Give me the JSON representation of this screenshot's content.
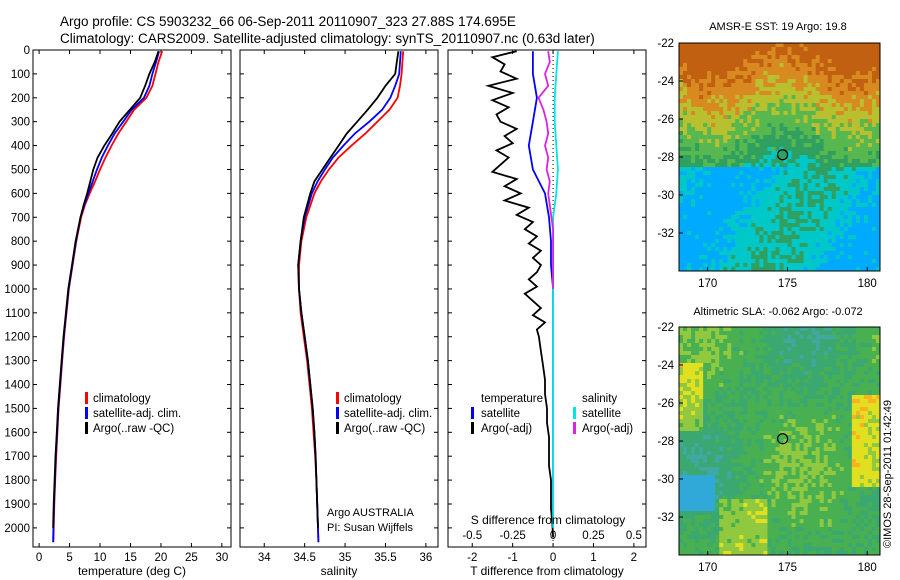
{
  "title": {
    "line1": "Argo profile: CS 5903232_66 06-Sep-2011 20110907_323 27.88S 174.695E",
    "line2": "Climatology: CARS2009. Satellite-adjusted climatology: synTS_20110907.nc (0.63d later)"
  },
  "colors": {
    "climatology": "#ff0000",
    "satellite": "#0000ff",
    "argo": "#000000",
    "s_satellite": "#00e5e5",
    "s_argo": "#e022e0"
  },
  "credits": {
    "argo_line": "Argo AUSTRALIA",
    "pi_line": "PI: Susan Wijffels",
    "imos": "©IMOS 28-Sep-2011 01:42:49"
  },
  "chart_data": [
    {
      "type": "line",
      "name": "temperature-panel",
      "xlabel": "temperature (deg C)",
      "ylabel": "",
      "xlim": [
        -1,
        31.5
      ],
      "ylim": [
        2080,
        0
      ],
      "xticks": [
        "0",
        "5",
        "10",
        "15",
        "20",
        "25",
        "30"
      ],
      "yticks": [
        "0",
        "100",
        "200",
        "300",
        "400",
        "500",
        "600",
        "700",
        "800",
        "900",
        "1000",
        "1100",
        "1200",
        "1300",
        "1400",
        "1500",
        "1600",
        "1700",
        "1800",
        "1900",
        "2000"
      ],
      "legend": [
        "climatology",
        "satellite-adj. clim.",
        "Argo(..raw -QC)"
      ],
      "series": [
        {
          "name": "climatology",
          "depth": [
            5,
            50,
            100,
            150,
            200,
            250,
            300,
            350,
            400,
            450,
            500,
            550,
            600,
            650,
            700,
            800,
            900,
            1000,
            1100,
            1200,
            1300,
            1400,
            1500,
            1600,
            1700,
            1800,
            1900,
            2000,
            2060
          ],
          "values": [
            20.2,
            19.6,
            19.1,
            18.6,
            17.6,
            15.6,
            14.3,
            13.0,
            11.9,
            10.9,
            10.0,
            9.2,
            8.3,
            7.5,
            6.9,
            6.1,
            5.5,
            4.9,
            4.5,
            4.1,
            3.8,
            3.5,
            3.2,
            3.0,
            2.8,
            2.65,
            2.5,
            2.4,
            2.35
          ]
        },
        {
          "name": "satellite-adj. clim.",
          "depth": [
            5,
            50,
            100,
            150,
            200,
            250,
            300,
            350,
            400,
            450,
            500,
            550,
            600,
            650,
            700,
            800,
            900,
            1000,
            1100,
            1200,
            1300,
            1400,
            1500,
            1600,
            1700,
            1800,
            1900,
            2000,
            2060
          ],
          "values": [
            19.7,
            19.2,
            18.6,
            18.1,
            17.2,
            15.2,
            13.8,
            12.4,
            11.3,
            10.3,
            9.5,
            8.8,
            8.1,
            7.4,
            6.8,
            6.05,
            5.45,
            4.85,
            4.45,
            4.05,
            3.75,
            3.45,
            3.15,
            2.95,
            2.75,
            2.6,
            2.45,
            2.35,
            2.3
          ]
        },
        {
          "name": "Argo(..raw -QC)",
          "depth": [
            5,
            50,
            100,
            150,
            200,
            250,
            300,
            350,
            400,
            450,
            500,
            550,
            600,
            650,
            700,
            800,
            900,
            1000,
            1100,
            1200,
            1300,
            1400,
            1500,
            1600,
            1700,
            1800,
            1900,
            2000
          ],
          "values": [
            19.6,
            19.0,
            18.1,
            17.4,
            16.6,
            14.9,
            13.2,
            12.0,
            10.7,
            9.6,
            8.9,
            8.4,
            7.9,
            7.3,
            6.8,
            6.0,
            5.4,
            4.8,
            4.4,
            4.0,
            3.7,
            3.4,
            3.1,
            2.9,
            2.7,
            2.55,
            2.4,
            2.3
          ]
        }
      ]
    },
    {
      "type": "line",
      "name": "salinity-panel",
      "xlabel": "salinity",
      "ylabel": "",
      "xlim": [
        33.7,
        36.15
      ],
      "ylim": [
        2080,
        0
      ],
      "xticks": [
        "34",
        "34.5",
        "35",
        "35.5",
        "36"
      ],
      "legend": [
        "climatology",
        "satellite-adj. clim.",
        "Argo(..raw -QC)"
      ],
      "series": [
        {
          "name": "climatology",
          "depth": [
            5,
            50,
            100,
            150,
            200,
            250,
            300,
            350,
            400,
            450,
            500,
            550,
            600,
            700,
            800,
            900,
            1000,
            1100,
            1200,
            1300,
            1400,
            1500,
            1600,
            1700,
            1800,
            1900,
            2000,
            2060
          ],
          "values": [
            35.72,
            35.71,
            35.7,
            35.68,
            35.65,
            35.55,
            35.4,
            35.25,
            35.08,
            34.92,
            34.8,
            34.7,
            34.62,
            34.52,
            34.46,
            34.43,
            34.43,
            34.45,
            34.49,
            34.53,
            34.56,
            34.59,
            34.61,
            34.63,
            34.645,
            34.655,
            34.665,
            34.67
          ]
        },
        {
          "name": "satellite-adj. clim.",
          "depth": [
            5,
            50,
            100,
            150,
            200,
            250,
            300,
            350,
            400,
            450,
            500,
            550,
            600,
            700,
            800,
            900,
            1000,
            1100,
            1200,
            1300,
            1400,
            1500,
            1600,
            1700,
            1800,
            1900,
            2000,
            2060
          ],
          "values": [
            35.69,
            35.68,
            35.67,
            35.62,
            35.56,
            35.46,
            35.3,
            35.12,
            34.98,
            34.85,
            34.75,
            34.66,
            34.59,
            34.5,
            34.45,
            34.42,
            34.43,
            34.46,
            34.5,
            34.54,
            34.57,
            34.6,
            34.62,
            34.635,
            34.645,
            34.655,
            34.665,
            34.67
          ]
        },
        {
          "name": "Argo(..raw -QC)",
          "depth": [
            5,
            50,
            100,
            150,
            200,
            250,
            300,
            350,
            400,
            450,
            500,
            550,
            600,
            700,
            800,
            900,
            1000,
            1100,
            1200,
            1300,
            1400,
            1500,
            1600,
            1700,
            1800,
            1900,
            2000
          ],
          "values": [
            35.66,
            35.64,
            35.62,
            35.5,
            35.4,
            35.28,
            35.15,
            35.02,
            34.92,
            34.82,
            34.72,
            34.62,
            34.57,
            34.49,
            34.45,
            34.42,
            34.43,
            34.46,
            34.5,
            34.54,
            34.57,
            34.6,
            34.62,
            34.635,
            34.645,
            34.655,
            34.665
          ]
        }
      ]
    },
    {
      "type": "line",
      "name": "difference-panel",
      "xlabel": "T difference from climatology",
      "x2label": "S difference from climatology",
      "xlim": [
        -2.6,
        2.3
      ],
      "ylim": [
        2080,
        0
      ],
      "xticks": [
        "-2",
        "-1",
        "0",
        "1",
        "2"
      ],
      "x2ticks": [
        "-0.5",
        "-0.25",
        "0",
        "0.25",
        "0.5"
      ],
      "legend_headers": [
        "temperature",
        "salinity"
      ],
      "legend": [
        "satellite",
        "Argo(-adj)",
        "satellite",
        "Argo(-adj)"
      ],
      "series": [
        {
          "name": "satellite",
          "quantity": "temperature",
          "depth": [
            5,
            100,
            200,
            300,
            400,
            500,
            600,
            700,
            800,
            900,
            1000,
            1200,
            1400,
            1600,
            1800,
            2000
          ],
          "values": [
            -0.5,
            -0.5,
            -0.4,
            -0.5,
            -0.6,
            -0.5,
            -0.2,
            -0.1,
            -0.05,
            -0.05,
            0,
            0,
            0,
            0,
            0,
            0
          ]
        },
        {
          "name": "Argo(-adj)",
          "quantity": "temperature",
          "depth": [
            5,
            30,
            60,
            90,
            120,
            150,
            180,
            210,
            240,
            270,
            300,
            330,
            360,
            390,
            420,
            450,
            480,
            510,
            540,
            570,
            600,
            630,
            660,
            690,
            720,
            750,
            780,
            810,
            840,
            870,
            900,
            930,
            960,
            990,
            1020,
            1050,
            1080,
            1110,
            1140,
            1170,
            1200,
            1260,
            1320,
            1380,
            1440,
            1500,
            1560,
            1620,
            1680,
            1740,
            1800,
            1860,
            1920,
            1980,
            2040
          ],
          "values": [
            -0.9,
            -1.5,
            -1.2,
            -1.3,
            -0.9,
            -1.6,
            -1.0,
            -1.5,
            -1.1,
            -1.4,
            -1.3,
            -0.9,
            -1.2,
            -1.0,
            -1.4,
            -1.1,
            -1.3,
            -1.5,
            -0.9,
            -1.2,
            -0.8,
            -1.2,
            -0.6,
            -0.9,
            -0.5,
            -0.7,
            -0.4,
            -0.6,
            -0.3,
            -0.5,
            -0.3,
            -0.4,
            -0.6,
            -0.4,
            -0.7,
            -0.5,
            -0.3,
            -0.5,
            -0.2,
            -0.4,
            -0.35,
            -0.3,
            -0.25,
            -0.2,
            -0.2,
            -0.15,
            -0.15,
            -0.1,
            -0.1,
            -0.1,
            -0.05,
            -0.05,
            -0.05,
            -0.02,
            0
          ]
        },
        {
          "name": "satellite",
          "quantity": "salinity",
          "depth": [
            5,
            100,
            200,
            300,
            400,
            500,
            600,
            700,
            800,
            1000,
            1400,
            2000
          ],
          "values": [
            0.03,
            0.02,
            0.01,
            0.01,
            0.02,
            0.03,
            0.02,
            0.0,
            0.0,
            0.0,
            0.0,
            0.0
          ]
        },
        {
          "name": "Argo(-adj)",
          "quantity": "salinity",
          "depth": [
            5,
            50,
            100,
            150,
            200,
            250,
            300,
            350,
            400,
            450,
            500,
            550,
            600,
            650,
            700,
            750,
            800,
            900,
            1000
          ],
          "values": [
            -0.03,
            -0.02,
            -0.05,
            -0.03,
            -0.09,
            -0.06,
            -0.04,
            -0.03,
            -0.05,
            -0.03,
            -0.04,
            -0.02,
            -0.03,
            -0.02,
            -0.01,
            0.0,
            0.0,
            0.0,
            0.0
          ]
        }
      ]
    },
    {
      "type": "heatmap",
      "name": "sst-map",
      "title": "AMSR-E SST: 19 Argo: 19.8",
      "xticks": [
        "170",
        "175",
        "180"
      ],
      "yticks": [
        "-22",
        "-24",
        "-26",
        "-28",
        "-30",
        "-32"
      ],
      "xlim": [
        168.2,
        180.8
      ],
      "ylim": [
        -34,
        -22
      ],
      "argo_position": [
        174.695,
        -27.88
      ],
      "colorscale": [
        "#00aaff",
        "#00c8c8",
        "#30a060",
        "#58b850",
        "#b8c030",
        "#d88a20",
        "#c06010"
      ]
    },
    {
      "type": "heatmap",
      "name": "sla-map",
      "title": "Altimetric SLA: -0.062 Argo: -0.072",
      "xticks": [
        "170",
        "175",
        "180"
      ],
      "yticks": [
        "-22",
        "-24",
        "-26",
        "-28",
        "-30",
        "-32"
      ],
      "xlim": [
        168.2,
        180.8
      ],
      "ylim": [
        -34,
        -22
      ],
      "argo_position": [
        174.695,
        -27.88
      ],
      "colorscale": [
        "#30a8d8",
        "#40a8a0",
        "#3aa870",
        "#48b050",
        "#90c840",
        "#e0e020",
        "#ffb020"
      ]
    }
  ]
}
